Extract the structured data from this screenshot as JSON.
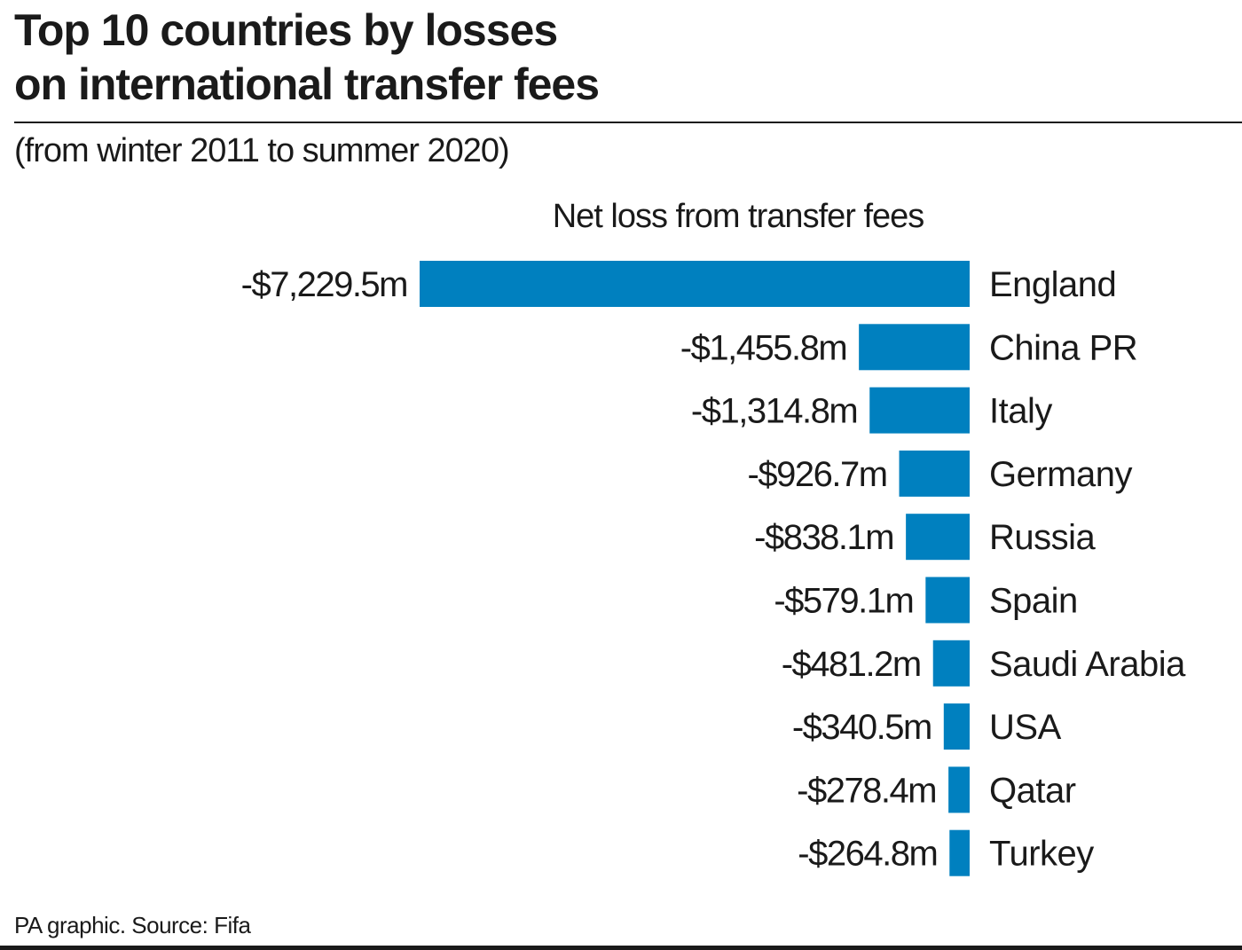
{
  "chart_data": {
    "type": "bar",
    "orientation": "horizontal",
    "title_lines": [
      "Top 10 countries by losses",
      "on international transfer fees"
    ],
    "subtitle": "(from winter 2011 to summer 2020)",
    "series_label": "Net loss from transfer fees",
    "categories": [
      "England",
      "China PR",
      "Italy",
      "Germany",
      "Russia",
      "Spain",
      "Saudi Arabia",
      "USA",
      "Qatar",
      "Turkey"
    ],
    "values": [
      -7229.5,
      -1455.8,
      -1314.8,
      -926.7,
      -838.1,
      -579.1,
      -481.2,
      -340.5,
      -278.4,
      -264.8
    ],
    "value_labels": [
      "-$7,229.5m",
      "-$1,455.8m",
      "-$1,314.8m",
      "-$926.7m",
      "-$838.1m",
      "-$579.1m",
      "-$481.2m",
      "-$340.5m",
      "-$278.4m",
      "-$264.8m"
    ],
    "unit": "$m",
    "bar_color": "#0080bf",
    "grid": false,
    "legend": "none"
  },
  "footer": "PA graphic. Source: Fifa",
  "colors": {
    "text": "#1a1a1a",
    "bar": "#0080bf",
    "background": "#ffffff"
  }
}
